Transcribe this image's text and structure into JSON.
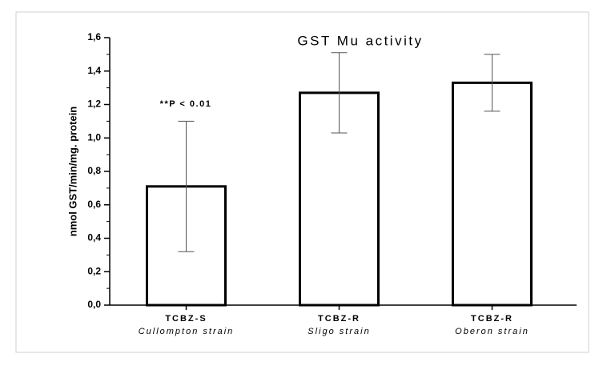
{
  "chart_data": {
    "type": "bar",
    "title": "GST Mu activity",
    "y_label": "nmol GST/min/mg. protein",
    "annotation": "**P < 0.01",
    "categories": [
      "TCBZ-S",
      "TCBZ-R",
      "TCBZ-R"
    ],
    "category_sublabels": [
      "Cullompton strain",
      "Sligo strain",
      "Oberon strain"
    ],
    "values": [
      0.71,
      1.27,
      1.33
    ],
    "errors": [
      0.39,
      0.24,
      0.17
    ],
    "color": "#ffffff",
    "ylim": [
      0,
      1.6
    ],
    "yticks": [
      {
        "value": 0,
        "label": "0,0"
      },
      {
        "value": 0.2,
        "label": "0,2"
      },
      {
        "value": 0.4,
        "label": "0,4"
      },
      {
        "value": 0.6,
        "label": "0,6"
      },
      {
        "value": 0.8,
        "label": "0,8"
      },
      {
        "value": 1.0,
        "label": "1,0"
      },
      {
        "value": 1.2,
        "label": "1,2"
      },
      {
        "value": 1.4,
        "label": "1,4"
      },
      {
        "value": 1.6,
        "label": "1,6"
      }
    ],
    "minor_yticks": [
      0.1,
      0.3,
      0.5,
      0.7,
      0.9,
      1.1,
      1.3,
      1.5
    ],
    "grid": false
  }
}
